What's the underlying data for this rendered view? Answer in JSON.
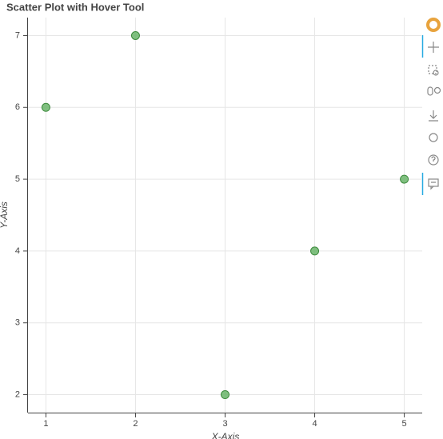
{
  "chart_data": {
    "type": "scatter",
    "title": "Scatter Plot with Hover Tool",
    "x_label": "X-Axis",
    "y_label": "Y-Axis",
    "x": [
      1,
      2,
      3,
      4,
      5
    ],
    "series": [
      {
        "name": null,
        "color": "#6ab56a",
        "values": [
          6,
          7,
          2,
          4,
          5
        ]
      }
    ],
    "xlim": [
      0.8,
      5.2
    ],
    "xticks": [
      1,
      2,
      3,
      4,
      5
    ],
    "ylim": [
      1.75,
      7.25
    ],
    "yticks": [
      2,
      3,
      4,
      5,
      6,
      7
    ],
    "grid": true
  }
}
